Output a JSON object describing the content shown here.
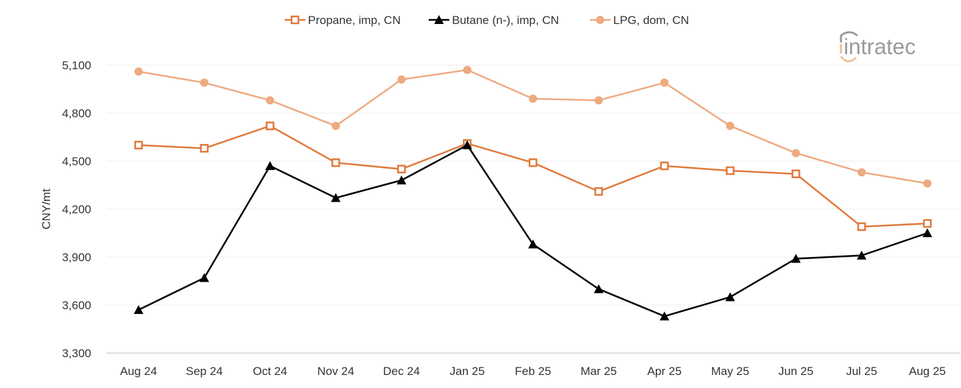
{
  "chart_data": {
    "type": "line",
    "title": "",
    "xlabel": "",
    "ylabel": "CNY/mt",
    "ylim": [
      3300,
      5100
    ],
    "yticks": [
      3300,
      3600,
      3900,
      4200,
      4500,
      4800,
      5100
    ],
    "ytick_labels": [
      "3,300",
      "3,600",
      "3,900",
      "4,200",
      "4,500",
      "4,800",
      "5,100"
    ],
    "grid": true,
    "legend_position": "top",
    "categories": [
      "Aug 24",
      "Sep 24",
      "Oct 24",
      "Nov 24",
      "Dec 24",
      "Jan 25",
      "Feb 25",
      "Mar 25",
      "Apr 25",
      "May 25",
      "Jun 25",
      "Jul 25",
      "Aug 25"
    ],
    "series": [
      {
        "name": "Propane, imp, CN",
        "color": "#e07a3c",
        "marker": "open-square",
        "values": [
          4600,
          4580,
          4720,
          4490,
          4450,
          4610,
          4490,
          4310,
          4470,
          4440,
          4420,
          4090,
          4110
        ]
      },
      {
        "name": "Butane (n-), imp, CN",
        "color": "#000000",
        "marker": "triangle",
        "values": [
          3570,
          3770,
          4470,
          4270,
          4380,
          4600,
          3980,
          3700,
          3530,
          3650,
          3890,
          3910,
          4050
        ]
      },
      {
        "name": "LPG, dom, CN",
        "color": "#eeaa80",
        "marker": "circle",
        "values": [
          5060,
          4990,
          4880,
          4720,
          5010,
          5070,
          4890,
          4880,
          4990,
          4720,
          4550,
          4430,
          4360
        ]
      }
    ]
  },
  "logo": {
    "text": "intratec",
    "colors": {
      "text": "#9a9a9a",
      "accent": "#e8c29c"
    }
  }
}
